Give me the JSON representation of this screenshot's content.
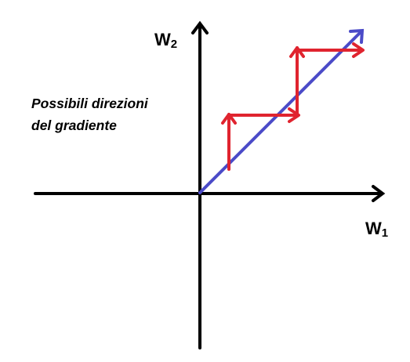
{
  "labels": {
    "w2": {
      "letter": "W",
      "subscript": "2"
    },
    "w1": {
      "letter": "W",
      "subscript": "1"
    },
    "caption_line1": "Possibili direzioni",
    "caption_line2": "del gradiente"
  },
  "colors": {
    "axes": "#000000",
    "direct_path": "#4b4bc8",
    "step_path": "#e0242f"
  }
}
